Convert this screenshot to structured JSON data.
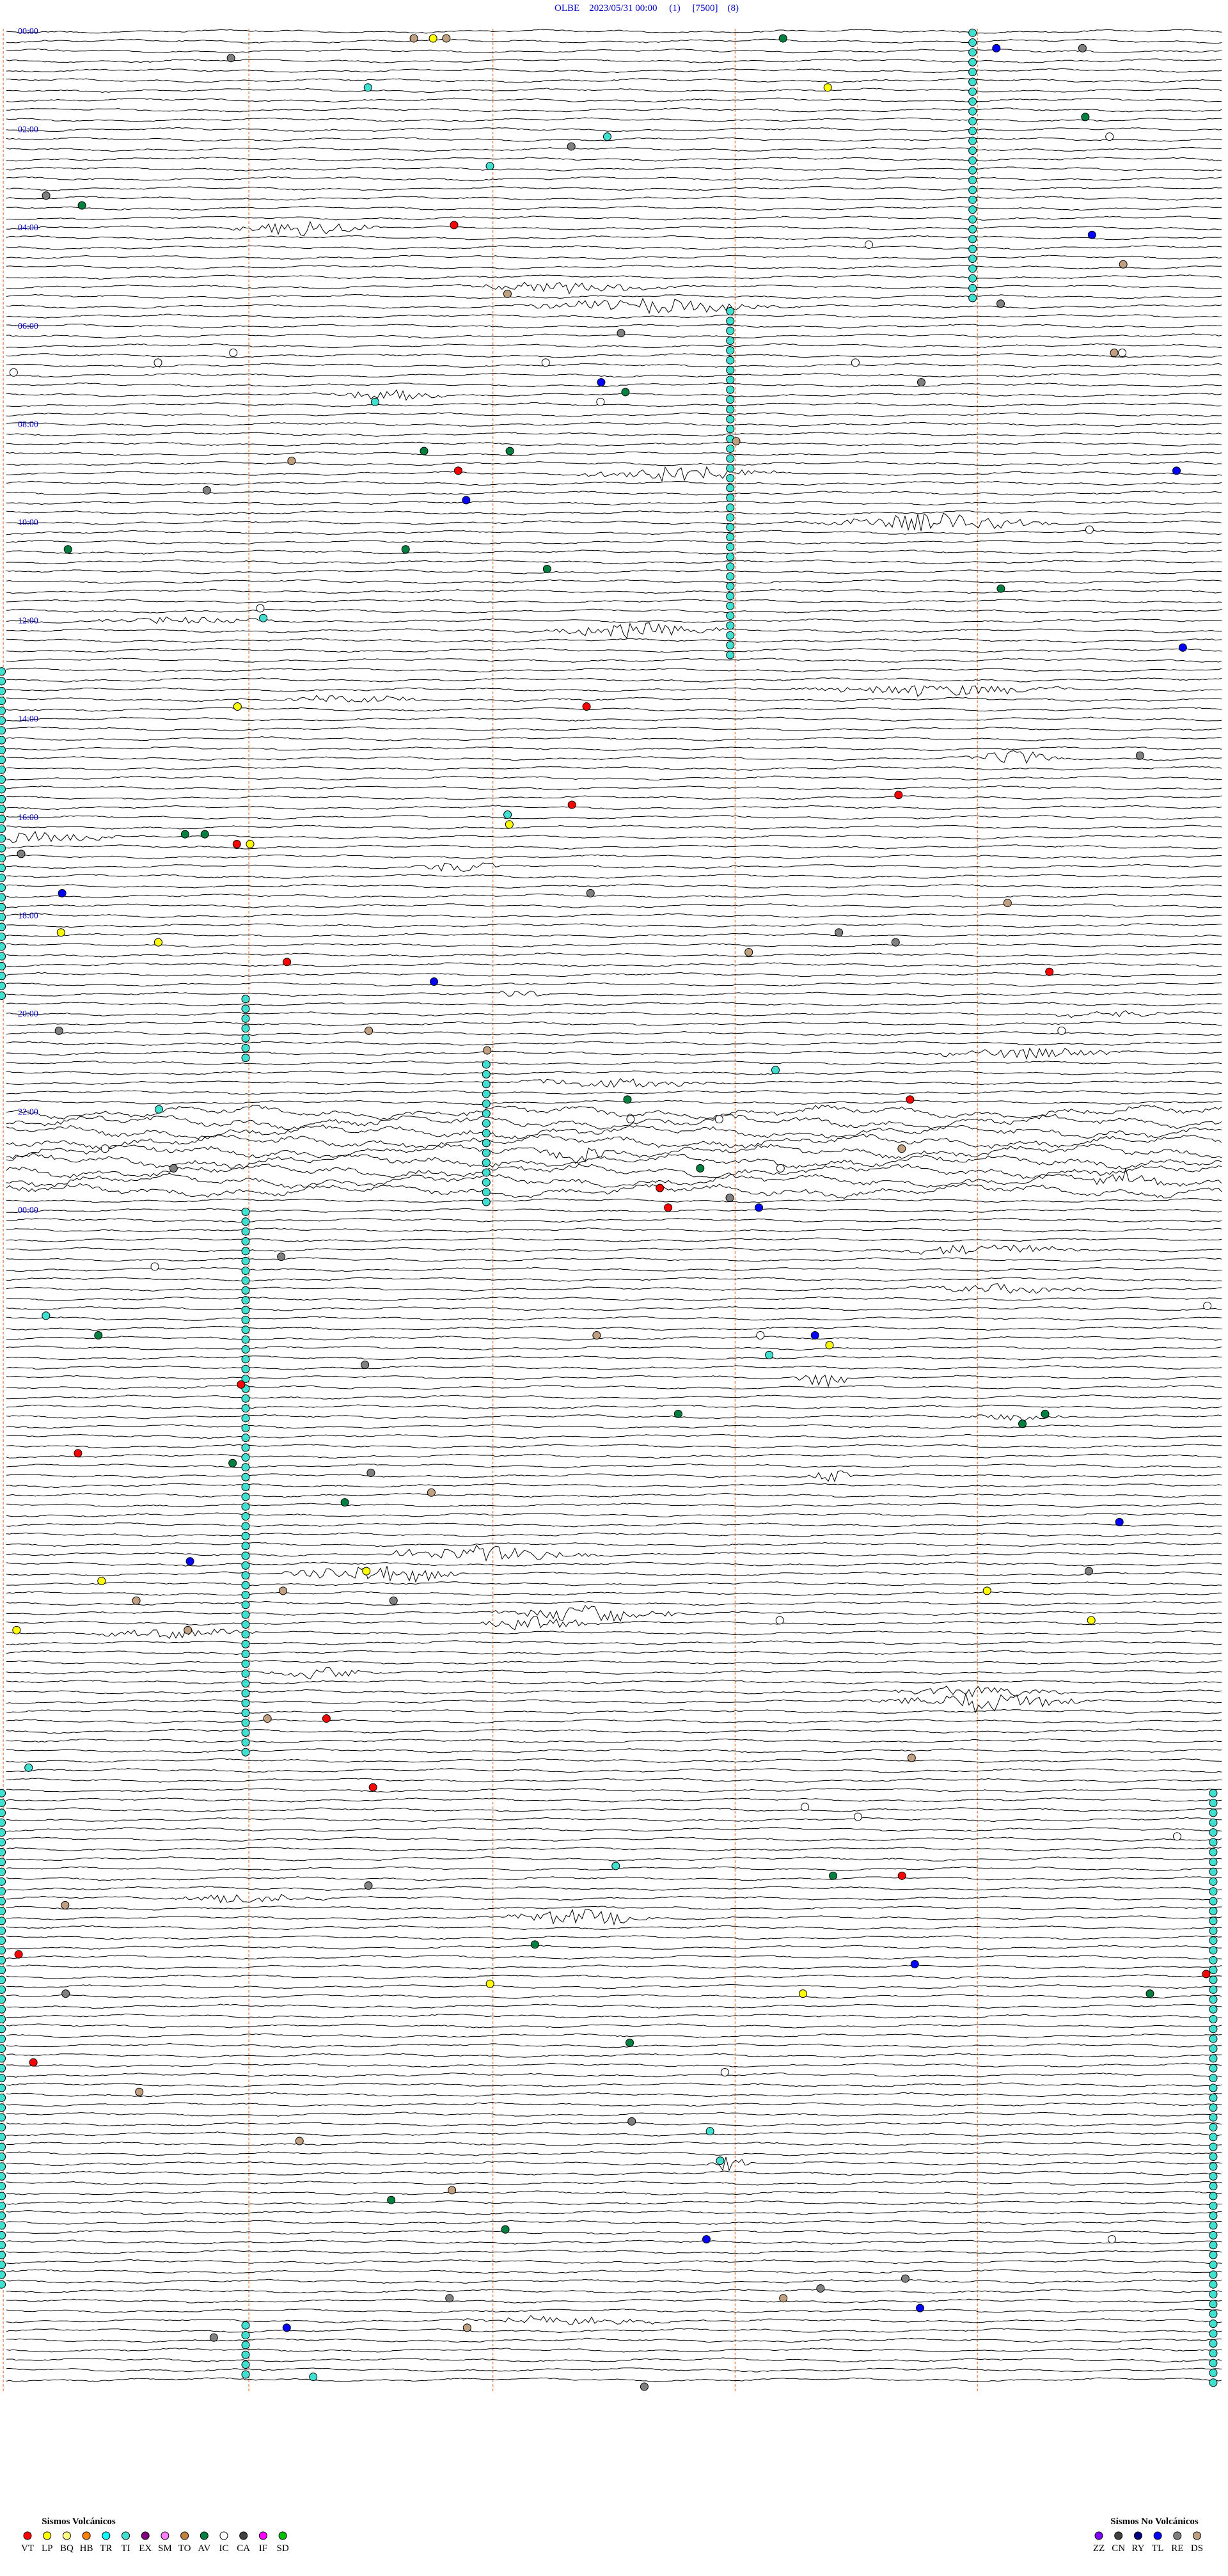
{
  "header": {
    "title": "OLBE    2023/05/31 00:00     (1)     [7500]    (8)"
  },
  "hour_labels": [
    "00:00",
    "02:00",
    "04:00",
    "06:00",
    "08:00",
    "10:00",
    "12:00",
    "14:00",
    "16:00",
    "18:00",
    "20:00",
    "22:00",
    "00:00"
  ],
  "legend": {
    "volcanic": {
      "title": "Sismos Volcánicos",
      "items": [
        {
          "code": "VT",
          "color": "#ff0000"
        },
        {
          "code": "LP",
          "color": "#ffff00"
        },
        {
          "code": "BQ",
          "color": "#ffff80"
        },
        {
          "code": "HB",
          "color": "#ff8000"
        },
        {
          "code": "TR",
          "color": "#00ffff"
        },
        {
          "code": "TI",
          "color": "#40e0d0"
        },
        {
          "code": "EX",
          "color": "#800080"
        },
        {
          "code": "SM",
          "color": "#ff80ff"
        },
        {
          "code": "TO",
          "color": "#c08040"
        },
        {
          "code": "AV",
          "color": "#008040"
        },
        {
          "code": "IC",
          "color": "#ffffff"
        },
        {
          "code": "CA",
          "color": "#404040"
        },
        {
          "code": "IF",
          "color": "#ff00ff"
        },
        {
          "code": "SD",
          "color": "#00c000"
        }
      ]
    },
    "non_volcanic": {
      "title": "Sismos No Volcánicos",
      "items": [
        {
          "code": "ZZ",
          "color": "#8000ff"
        },
        {
          "code": "CN",
          "color": "#404040"
        },
        {
          "code": "RY",
          "color": "#000080"
        },
        {
          "code": "TL",
          "color": "#0000ff"
        },
        {
          "code": "RE",
          "color": "#808080"
        },
        {
          "code": "DS",
          "color": "#c0a080"
        }
      ]
    }
  }
}
